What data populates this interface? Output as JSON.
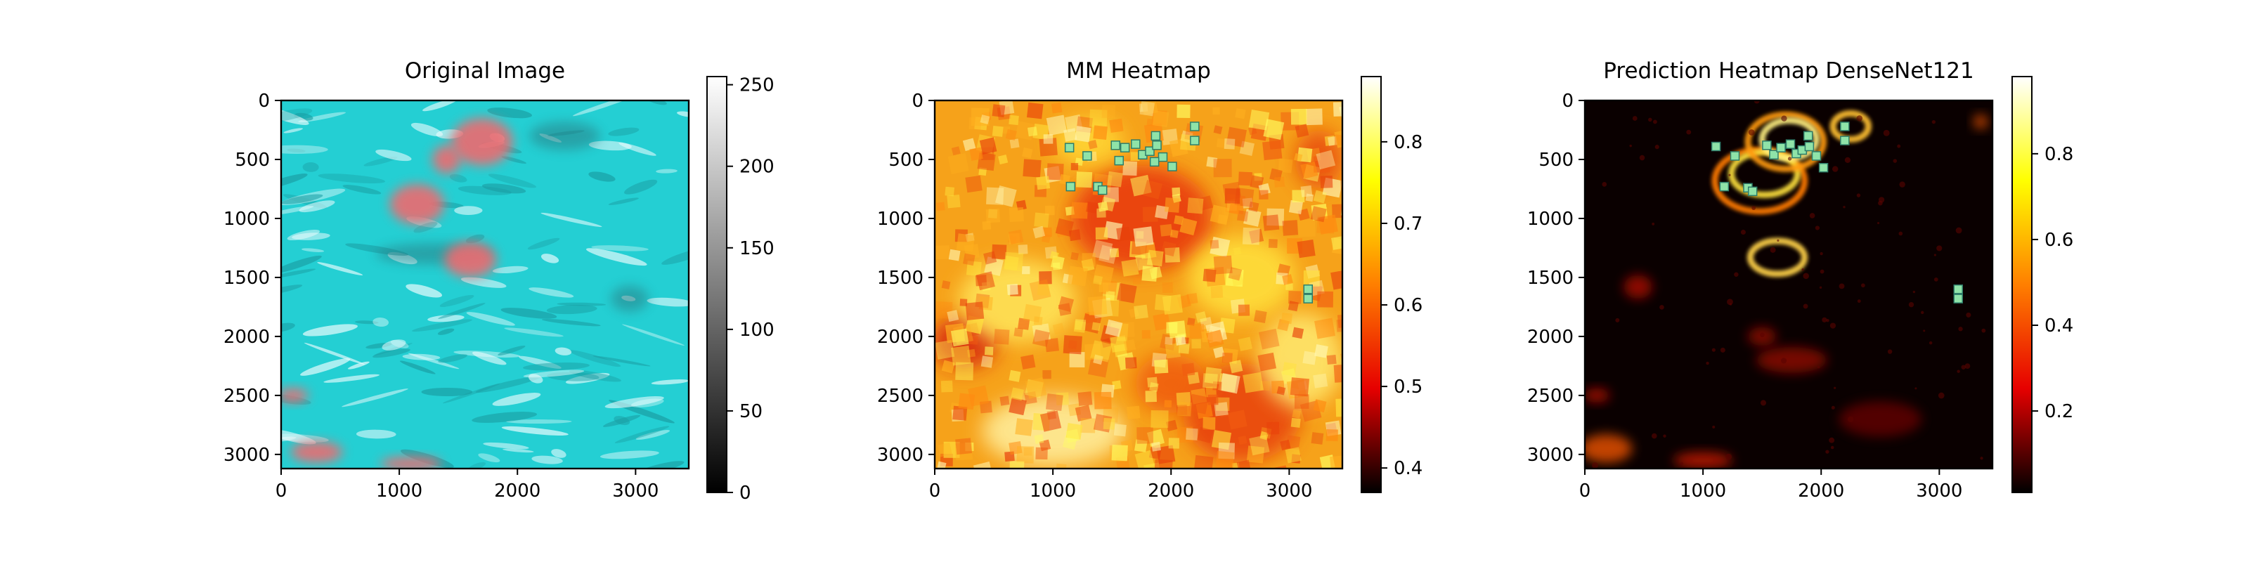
{
  "figure": {
    "background": "#ffffff"
  },
  "chart_data": [
    {
      "type": "heatmap",
      "title": "Original Image",
      "xlabel": "",
      "ylabel": "",
      "x_ticks": [
        "0",
        "1000",
        "2000",
        "3000"
      ],
      "x_tick_values": [
        0,
        1000,
        2000,
        3000
      ],
      "y_ticks": [
        "0",
        "500",
        "1000",
        "1500",
        "2000",
        "2500",
        "3000"
      ],
      "y_tick_values": [
        0,
        500,
        1000,
        1500,
        2000,
        2500,
        3000
      ],
      "xlim": [
        0,
        3450
      ],
      "ylim": [
        3120,
        0
      ],
      "colorbar": {
        "colormap": "gray",
        "range": [
          0,
          255
        ],
        "ticks": [
          "0",
          "50",
          "100",
          "150",
          "200",
          "250"
        ],
        "tick_values": [
          0,
          50,
          100,
          150,
          200,
          250
        ],
        "colors": [
          "#000000",
          "#ffffff"
        ]
      },
      "image": {
        "base_color": "#24cfd3",
        "blob_color": "#ee6a6f",
        "blobs": [
          {
            "x": 1700,
            "y": 350,
            "rx": 260,
            "ry": 200
          },
          {
            "x": 1150,
            "y": 880,
            "rx": 230,
            "ry": 170
          },
          {
            "x": 1600,
            "y": 1350,
            "rx": 220,
            "ry": 150
          },
          {
            "x": 1400,
            "y": 500,
            "rx": 120,
            "ry": 120
          },
          {
            "x": 100,
            "y": 2500,
            "rx": 130,
            "ry": 60
          },
          {
            "x": 300,
            "y": 2980,
            "rx": 220,
            "ry": 90
          },
          {
            "x": 1100,
            "y": 3080,
            "rx": 260,
            "ry": 60
          }
        ],
        "dark_patches": [
          {
            "x": 2400,
            "y": 300,
            "rx": 300,
            "ry": 120
          },
          {
            "x": 2950,
            "y": 1680,
            "rx": 160,
            "ry": 110
          },
          {
            "x": 1300,
            "y": 1300,
            "rx": 500,
            "ry": 90
          }
        ]
      },
      "markers": []
    },
    {
      "type": "heatmap",
      "title": "MM Heatmap",
      "xlabel": "",
      "ylabel": "",
      "x_ticks": [
        "0",
        "1000",
        "2000",
        "3000"
      ],
      "x_tick_values": [
        0,
        1000,
        2000,
        3000
      ],
      "y_ticks": [
        "0",
        "500",
        "1000",
        "1500",
        "2000",
        "2500",
        "3000"
      ],
      "y_tick_values": [
        0,
        500,
        1000,
        1500,
        2000,
        2500,
        3000
      ],
      "xlim": [
        0,
        3450
      ],
      "ylim": [
        3120,
        0
      ],
      "colorbar": {
        "colormap": "hot",
        "range": [
          0.37,
          0.88
        ],
        "ticks": [
          "0.4",
          "0.5",
          "0.6",
          "0.7",
          "0.8"
        ],
        "tick_values": [
          0.4,
          0.5,
          0.6,
          0.7,
          0.8
        ],
        "colors": [
          "#000000",
          "#e60000",
          "#ff7f00",
          "#ffff00",
          "#ffffff"
        ]
      },
      "image": {
        "base_color": "#f6a21a",
        "hot_spots": [
          {
            "x": 1750,
            "y": 1000,
            "rx": 600,
            "ry": 450,
            "color": "#e8360a"
          },
          {
            "x": 250,
            "y": 2050,
            "rx": 280,
            "ry": 220,
            "color": "#d6200a"
          },
          {
            "x": 2600,
            "y": 2650,
            "rx": 500,
            "ry": 420,
            "color": "#e8400a"
          },
          {
            "x": 2000,
            "y": 2400,
            "rx": 300,
            "ry": 250,
            "color": "#f05a10"
          },
          {
            "x": 3250,
            "y": 500,
            "rx": 200,
            "ry": 250,
            "color": "#e84a0a"
          }
        ],
        "bright_spots": [
          {
            "x": 700,
            "y": 1700,
            "rx": 500,
            "ry": 350,
            "color": "#ffe65a"
          },
          {
            "x": 1000,
            "y": 2800,
            "rx": 600,
            "ry": 300,
            "color": "#fff1a0"
          },
          {
            "x": 2600,
            "y": 1500,
            "rx": 450,
            "ry": 350,
            "color": "#ffe23c"
          },
          {
            "x": 3100,
            "y": 2200,
            "rx": 350,
            "ry": 400,
            "color": "#ffea70"
          },
          {
            "x": 1300,
            "y": 350,
            "rx": 300,
            "ry": 200,
            "color": "#ffd836"
          }
        ]
      },
      "markers": [
        {
          "x": 1140,
          "y": 400
        },
        {
          "x": 1290,
          "y": 470
        },
        {
          "x": 1530,
          "y": 380
        },
        {
          "x": 1560,
          "y": 510
        },
        {
          "x": 1610,
          "y": 400
        },
        {
          "x": 1700,
          "y": 370
        },
        {
          "x": 1760,
          "y": 460
        },
        {
          "x": 1820,
          "y": 430
        },
        {
          "x": 1870,
          "y": 300
        },
        {
          "x": 1880,
          "y": 380
        },
        {
          "x": 1930,
          "y": 480
        },
        {
          "x": 2010,
          "y": 560
        },
        {
          "x": 1860,
          "y": 520
        },
        {
          "x": 2200,
          "y": 220
        },
        {
          "x": 2200,
          "y": 340
        },
        {
          "x": 1150,
          "y": 730
        },
        {
          "x": 1380,
          "y": 730
        },
        {
          "x": 1420,
          "y": 760
        },
        {
          "x": 3160,
          "y": 1600
        },
        {
          "x": 3160,
          "y": 1680
        }
      ]
    },
    {
      "type": "heatmap",
      "title": "Prediction Heatmap DenseNet121",
      "xlabel": "",
      "ylabel": "",
      "x_ticks": [
        "0",
        "1000",
        "2000",
        "3000"
      ],
      "x_tick_values": [
        0,
        1000,
        2000,
        3000
      ],
      "y_ticks": [
        "0",
        "500",
        "1000",
        "1500",
        "2000",
        "2500",
        "3000"
      ],
      "y_tick_values": [
        0,
        500,
        1000,
        1500,
        2000,
        2500,
        3000
      ],
      "xlim": [
        0,
        3450
      ],
      "ylim": [
        3120,
        0
      ],
      "colorbar": {
        "colormap": "hot",
        "range": [
          0.01,
          0.98
        ],
        "ticks": [
          "0.2",
          "0.4",
          "0.6",
          "0.8"
        ],
        "tick_values": [
          0.2,
          0.4,
          0.6,
          0.8
        ],
        "colors": [
          "#000000",
          "#e60000",
          "#ff7f00",
          "#ffff00",
          "#ffffff"
        ]
      },
      "image": {
        "base_color": "#0a0000",
        "rings": [
          {
            "x": 1480,
            "y": 680,
            "rx": 380,
            "ry": 260,
            "color": "#ff7a00"
          },
          {
            "x": 1520,
            "y": 620,
            "rx": 280,
            "ry": 180,
            "color": "#ffe23c"
          },
          {
            "x": 1700,
            "y": 350,
            "rx": 320,
            "ry": 230,
            "color": "#ff9a10"
          },
          {
            "x": 1730,
            "y": 330,
            "rx": 230,
            "ry": 160,
            "color": "#ffef80"
          },
          {
            "x": 2250,
            "y": 220,
            "rx": 150,
            "ry": 110,
            "color": "#ffc030"
          },
          {
            "x": 1630,
            "y": 1330,
            "rx": 230,
            "ry": 140,
            "color": "#ffd24a"
          }
        ],
        "embers": [
          {
            "x": 180,
            "y": 2950,
            "rx": 220,
            "ry": 120,
            "color": "#ff5a00"
          },
          {
            "x": 1000,
            "y": 3050,
            "rx": 250,
            "ry": 70,
            "color": "#d61a00"
          },
          {
            "x": 100,
            "y": 2500,
            "rx": 110,
            "ry": 60,
            "color": "#c01000"
          },
          {
            "x": 450,
            "y": 1580,
            "rx": 120,
            "ry": 100,
            "color": "#b80d00"
          },
          {
            "x": 1750,
            "y": 2200,
            "rx": 300,
            "ry": 110,
            "color": "#9a0800"
          },
          {
            "x": 1500,
            "y": 2000,
            "rx": 120,
            "ry": 80,
            "color": "#a00a00"
          },
          {
            "x": 3350,
            "y": 180,
            "rx": 60,
            "ry": 60,
            "color": "#ff5a00"
          },
          {
            "x": 2500,
            "y": 2700,
            "rx": 350,
            "ry": 150,
            "color": "#6a0400"
          }
        ]
      },
      "markers": [
        {
          "x": 1110,
          "y": 390
        },
        {
          "x": 1270,
          "y": 470
        },
        {
          "x": 1540,
          "y": 380
        },
        {
          "x": 1600,
          "y": 460
        },
        {
          "x": 1660,
          "y": 400
        },
        {
          "x": 1740,
          "y": 370
        },
        {
          "x": 1790,
          "y": 450
        },
        {
          "x": 1840,
          "y": 420
        },
        {
          "x": 1890,
          "y": 300
        },
        {
          "x": 1900,
          "y": 390
        },
        {
          "x": 1960,
          "y": 470
        },
        {
          "x": 2020,
          "y": 570
        },
        {
          "x": 2200,
          "y": 220
        },
        {
          "x": 2200,
          "y": 340
        },
        {
          "x": 1180,
          "y": 730
        },
        {
          "x": 1380,
          "y": 740
        },
        {
          "x": 1420,
          "y": 770
        },
        {
          "x": 3160,
          "y": 1600
        },
        {
          "x": 3160,
          "y": 1680
        }
      ]
    }
  ]
}
